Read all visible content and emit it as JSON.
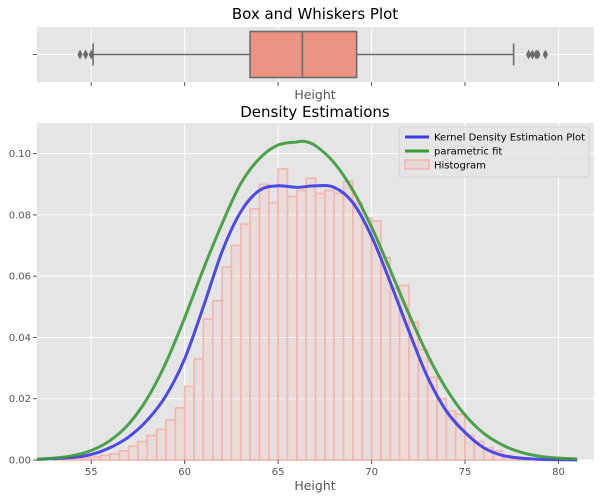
{
  "chart_data": [
    {
      "type": "box",
      "title": "Box and Whiskers Plot",
      "xlabel": "Height",
      "ylabel": "",
      "xlim": [
        52.1,
        81.9
      ],
      "box": {
        "whisker_low": 55.1,
        "q1": 63.5,
        "median": 66.3,
        "q3": 69.2,
        "whisker_high": 77.6,
        "outliers": [
          54.4,
          54.7,
          55.0,
          78.4,
          78.6,
          78.8,
          78.9,
          79.3
        ],
        "color": "#ec9384"
      }
    },
    {
      "type": "histogram+line",
      "title": "Density Estimations",
      "xlabel": "Height",
      "ylabel": "",
      "xlim": [
        52.1,
        81.9
      ],
      "ylim": [
        0,
        0.11
      ],
      "xticks": [
        55,
        60,
        65,
        70,
        75,
        80
      ],
      "yticks": [
        0.0,
        0.02,
        0.04,
        0.06,
        0.08,
        0.1
      ],
      "ytick_labels": [
        "0.00",
        "0.02",
        "0.04",
        "0.06",
        "0.08",
        "0.10"
      ],
      "legend": {
        "position": "top-right",
        "entries": [
          "Kernel Density Estimation Plot",
          "parametric fit",
          "Histogram"
        ]
      },
      "histogram": {
        "name": "Histogram",
        "color": "#f4b6ad",
        "bin_start": 52.5,
        "bin_width": 0.5,
        "values": [
          0.0,
          0.0002,
          0.0003,
          0.0006,
          0.0008,
          0.001,
          0.0015,
          0.002,
          0.003,
          0.0045,
          0.006,
          0.008,
          0.01,
          0.013,
          0.017,
          0.024,
          0.033,
          0.046,
          0.052,
          0.063,
          0.07,
          0.077,
          0.082,
          0.09,
          0.084,
          0.095,
          0.086,
          0.088,
          0.092,
          0.087,
          0.088,
          0.087,
          0.091,
          0.084,
          0.079,
          0.078,
          0.066,
          0.056,
          0.057,
          0.045,
          0.036,
          0.027,
          0.02,
          0.016,
          0.015,
          0.008,
          0.006,
          0.004,
          0.003,
          0.0015,
          0.001,
          0.0005
        ]
      },
      "series": [
        {
          "name": "Kernel Density Estimation Plot",
          "color": "#3a3ae8",
          "x": [
            52.1,
            54,
            55,
            56,
            57,
            58,
            59,
            60,
            61,
            62,
            63,
            64,
            65,
            66,
            67,
            68,
            69,
            70,
            71,
            72,
            73,
            74,
            75,
            76,
            77,
            78,
            79,
            80,
            81
          ],
          "y": [
            0.0002,
            0.0008,
            0.0018,
            0.004,
            0.0075,
            0.013,
            0.021,
            0.033,
            0.05,
            0.068,
            0.081,
            0.088,
            0.0895,
            0.089,
            0.0895,
            0.089,
            0.084,
            0.073,
            0.058,
            0.042,
            0.027,
            0.016,
            0.009,
            0.004,
            0.0015,
            0.0006,
            0.0002,
            0.0001,
            0.0
          ]
        },
        {
          "name": "parametric fit",
          "color": "#3a9a3a",
          "x": [
            52.1,
            53,
            54,
            55,
            56,
            57,
            58,
            59,
            60,
            61,
            62,
            63,
            64,
            65,
            66,
            66.4,
            67,
            68,
            69,
            70,
            71,
            72,
            73,
            74,
            75,
            76,
            77,
            78,
            79,
            80,
            81
          ],
          "y": [
            0.0003,
            0.0006,
            0.0014,
            0.0031,
            0.0063,
            0.0117,
            0.0201,
            0.0318,
            0.0464,
            0.0623,
            0.0771,
            0.0902,
            0.0984,
            0.1028,
            0.1038,
            0.104,
            0.1026,
            0.097,
            0.088,
            0.076,
            0.062,
            0.0476,
            0.0343,
            0.0232,
            0.0147,
            0.0087,
            0.0049,
            0.0025,
            0.0012,
            0.0006,
            0.0003
          ]
        }
      ]
    }
  ]
}
